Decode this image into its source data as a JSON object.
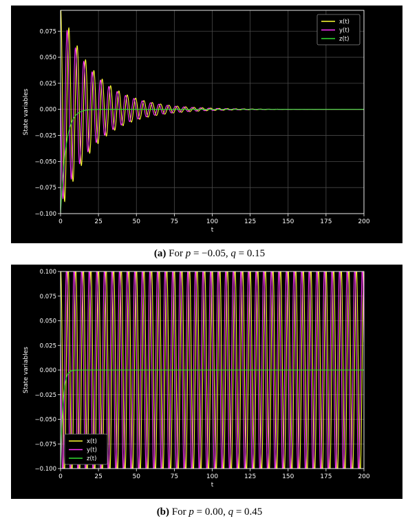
{
  "chart_data": [
    {
      "type": "line",
      "panel_label": "(a)",
      "caption_prefix": "For",
      "params": [
        {
          "name": "p",
          "value": "−0.05"
        },
        {
          "name": "q",
          "value": "0.15"
        }
      ],
      "xlabel": "t",
      "ylabel": "State variables",
      "xlim": [
        0,
        200
      ],
      "ylim": [
        -0.1,
        0.095
      ],
      "xticks": [
        0,
        25,
        50,
        75,
        100,
        125,
        150,
        175,
        200
      ],
      "xtick_labels": [
        "0",
        "25",
        "50",
        "75",
        "100",
        "125",
        "150",
        "175",
        "200"
      ],
      "yticks": [
        -0.1,
        -0.075,
        -0.05,
        -0.025,
        0.0,
        0.025,
        0.05,
        0.075
      ],
      "ytick_labels": [
        "−0.100",
        "−0.075",
        "−0.050",
        "−0.025",
        "0.000",
        "0.025",
        "0.050",
        "0.075"
      ],
      "grid": true,
      "legend_position": "top-right",
      "behavior": "damped oscillation",
      "series": [
        {
          "name": "x(t)",
          "color": "#ffff33",
          "amplitude": 0.1,
          "period": 5.5,
          "phase": 0.0,
          "decay_rate": 0.045
        },
        {
          "name": "y(t)",
          "color": "#ff33ff",
          "amplitude": 0.092,
          "period": 5.5,
          "phase": 1.3,
          "decay_rate": 0.045
        },
        {
          "name": "z(t)",
          "color": "#33dd33",
          "initial": -0.1,
          "final": 0.0,
          "relaxation_time": 3.5
        }
      ]
    },
    {
      "type": "line",
      "panel_label": "(b)",
      "caption_prefix": "For",
      "params": [
        {
          "name": "p",
          "value": "0.00"
        },
        {
          "name": "q",
          "value": "0.45"
        }
      ],
      "xlabel": "t",
      "ylabel": "State variables",
      "xlim": [
        0,
        200
      ],
      "ylim": [
        -0.1,
        0.1
      ],
      "xticks": [
        0,
        25,
        50,
        75,
        100,
        125,
        150,
        175,
        200
      ],
      "xtick_labels": [
        "0",
        "25",
        "50",
        "75",
        "100",
        "125",
        "150",
        "175",
        "200"
      ],
      "yticks": [
        -0.1,
        -0.075,
        -0.05,
        -0.025,
        0.0,
        0.025,
        0.05,
        0.075,
        0.1
      ],
      "ytick_labels": [
        "−0.100",
        "−0.075",
        "−0.050",
        "−0.025",
        "0.000",
        "0.025",
        "0.050",
        "0.075",
        "0.100"
      ],
      "grid": true,
      "legend_position": "bottom-left",
      "behavior": "sustained oscillation",
      "series": [
        {
          "name": "x(t)",
          "color": "#ffff33",
          "amplitude": 0.105,
          "period": 5.0,
          "phase": 0.0,
          "decay_rate": 0.0
        },
        {
          "name": "y(t)",
          "color": "#ff33ff",
          "amplitude": 0.105,
          "period": 5.0,
          "phase": 1.3,
          "decay_rate": 0.0
        },
        {
          "name": "z(t)",
          "color": "#33dd33",
          "initial": -0.1,
          "final": 0.0,
          "relaxation_time": 1.5
        }
      ]
    }
  ]
}
